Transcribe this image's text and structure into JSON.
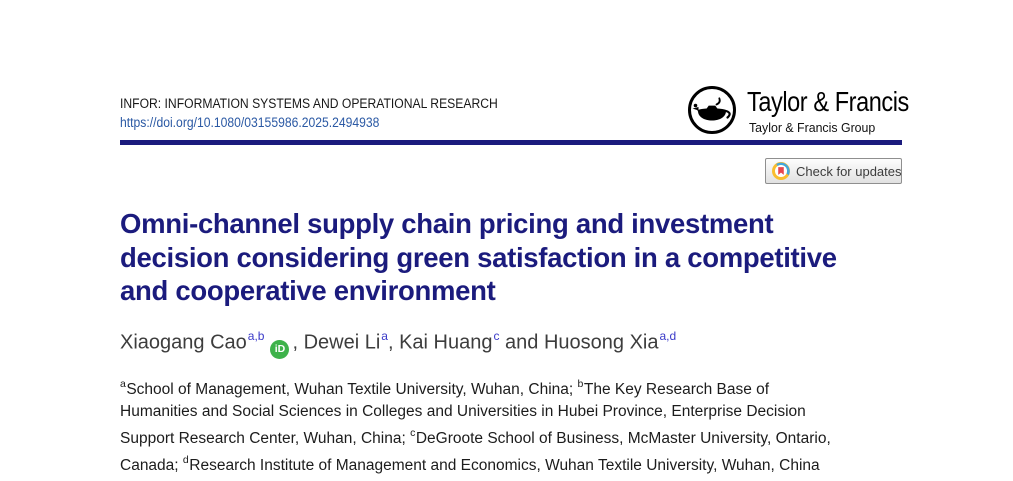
{
  "header": {
    "journal": "INFOR: INFORMATION SYSTEMS AND OPERATIONAL RESEARCH",
    "doi": "https://doi.org/10.1080/03155986.2025.2494938",
    "doi_color": "#2b59a4",
    "rule_color": "#1b1b7d",
    "publisher": {
      "wordmark": "Taylor & Francis",
      "group": "Taylor & Francis Group",
      "logo_icon": "taylor-francis-lamp-icon"
    }
  },
  "crossmark": {
    "label": "Check for updates",
    "icon": "crossmark-icon",
    "colors": {
      "ring_blue": "#45a7da",
      "ring_yellow": "#f9bd2f",
      "bookmark_red": "#e8454e"
    }
  },
  "article": {
    "title_lines": [
      "Omni-channel supply chain pricing and investment",
      "decision considering green satisfaction in a competitive",
      "and cooperative environment"
    ],
    "title_color": "#1b1b7d",
    "authors": {
      "sup_color": "#3a3ac8",
      "orcid_color": "#3eb24a",
      "orcid_label": "iD",
      "segments": [
        {
          "t": "text",
          "v": "Xiaogang Cao"
        },
        {
          "t": "sup",
          "v": "a,b"
        },
        {
          "t": "orcid"
        },
        {
          "t": "text",
          "v": ", Dewei Li"
        },
        {
          "t": "sup",
          "v": "a"
        },
        {
          "t": "text",
          "v": ", Kai Huang"
        },
        {
          "t": "sup",
          "v": "c"
        },
        {
          "t": "text",
          "v": " and Huosong Xia"
        },
        {
          "t": "sup",
          "v": "a,d"
        }
      ]
    },
    "affiliation_lines": [
      [
        {
          "sup": "a",
          "text": "School of Management, Wuhan Textile University, Wuhan, China; "
        },
        {
          "sup": "b",
          "text": "The Key Research Base of"
        }
      ],
      [
        {
          "text": "Humanities and Social Sciences in Colleges and Universities in Hubei Province, Enterprise Decision"
        }
      ],
      [
        {
          "text": "Support Research Center, Wuhan, China; "
        },
        {
          "sup": "c",
          "text": "DeGroote School of Business, McMaster University, Ontario,"
        }
      ],
      [
        {
          "text": "Canada; "
        },
        {
          "sup": "d",
          "text": "Research Institute of Management and Economics, Wuhan Textile University, Wuhan, China"
        }
      ]
    ]
  }
}
